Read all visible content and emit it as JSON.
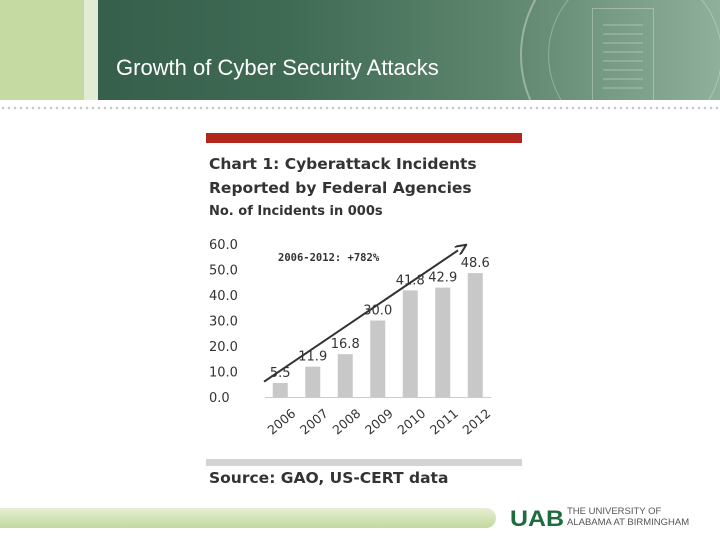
{
  "slide": {
    "title": "Growth of Cyber Security Attacks"
  },
  "chart_data": {
    "type": "bar",
    "title": "Chart 1: Cyberattack Incidents\nReported by Federal Agencies",
    "subtitle": "No. of Incidents in 000s",
    "categories": [
      "2006",
      "2007",
      "2008",
      "2009",
      "2010",
      "2011",
      "2012"
    ],
    "values": [
      5.5,
      11.9,
      16.8,
      30.0,
      41.8,
      42.9,
      48.6
    ],
    "value_labels": [
      "5.5",
      "11.9",
      "16.8",
      "30.0",
      "41.8",
      "42.9",
      "48.6"
    ],
    "y_ticks": [
      "0.0",
      "10.0",
      "20.0",
      "30.0",
      "40.0",
      "50.0",
      "60.0"
    ],
    "ylim": [
      0,
      60
    ],
    "xlabel": "",
    "ylabel": "",
    "annotation": "2006-2012: +782%",
    "source": "Source: GAO, US-CERT data",
    "bar_color": "#c8c8c8",
    "accent_color": "#b3261e"
  },
  "footer": {
    "logo_text": "UAB",
    "university_name": "THE UNIVERSITY OF\nALABAMA AT BIRMINGHAM"
  }
}
